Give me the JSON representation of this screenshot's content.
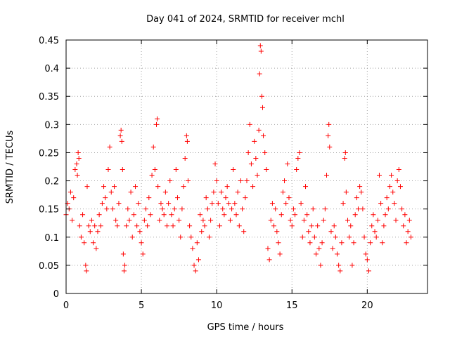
{
  "chart_data": {
    "type": "scatter",
    "title": "Day 041 of 2024, SRMTID for receiver mchl",
    "xlabel": "GPS time / hours",
    "ylabel": "SRMTID / TECUs",
    "xlim": [
      0,
      24
    ],
    "ylim": [
      0,
      0.45
    ],
    "xticks": [
      0,
      5,
      10,
      15,
      20
    ],
    "yticks": [
      0,
      0.05,
      0.1,
      0.15,
      0.2,
      0.25,
      0.3,
      0.35,
      0.4,
      0.45
    ],
    "xtick_labels": [
      "0",
      "5",
      "10",
      "15",
      "20"
    ],
    "ytick_labels": [
      "0",
      "0.05",
      "0.1",
      "0.15",
      "0.2",
      "0.25",
      "0.3",
      "0.35",
      "0.4",
      "0.45"
    ],
    "grid": true,
    "marker": "+",
    "color": "#ff0000",
    "x_range_of_data": [
      0,
      22.9
    ],
    "series": [
      {
        "name": "SRMTID",
        "points": [
          [
            0.0,
            0.14
          ],
          [
            0.1,
            0.16
          ],
          [
            0.2,
            0.15
          ],
          [
            0.3,
            0.18
          ],
          [
            0.4,
            0.13
          ],
          [
            0.5,
            0.17
          ],
          [
            0.6,
            0.22
          ],
          [
            0.7,
            0.23
          ],
          [
            0.75,
            0.21
          ],
          [
            0.8,
            0.25
          ],
          [
            0.85,
            0.24
          ],
          [
            0.9,
            0.12
          ],
          [
            1.0,
            0.1
          ],
          [
            1.1,
            0.14
          ],
          [
            1.2,
            0.09
          ],
          [
            1.3,
            0.05
          ],
          [
            1.35,
            0.04
          ],
          [
            1.4,
            0.19
          ],
          [
            1.5,
            0.12
          ],
          [
            1.6,
            0.11
          ],
          [
            1.7,
            0.13
          ],
          [
            1.8,
            0.09
          ],
          [
            1.9,
            0.12
          ],
          [
            2.0,
            0.08
          ],
          [
            2.1,
            0.11
          ],
          [
            2.2,
            0.14
          ],
          [
            2.3,
            0.12
          ],
          [
            2.4,
            0.16
          ],
          [
            2.5,
            0.19
          ],
          [
            2.6,
            0.17
          ],
          [
            2.7,
            0.15
          ],
          [
            2.8,
            0.22
          ],
          [
            2.9,
            0.26
          ],
          [
            3.0,
            0.18
          ],
          [
            3.1,
            0.15
          ],
          [
            3.2,
            0.19
          ],
          [
            3.3,
            0.13
          ],
          [
            3.4,
            0.12
          ],
          [
            3.5,
            0.16
          ],
          [
            3.6,
            0.28
          ],
          [
            3.65,
            0.29
          ],
          [
            3.7,
            0.27
          ],
          [
            3.75,
            0.22
          ],
          [
            3.8,
            0.07
          ],
          [
            3.85,
            0.04
          ],
          [
            3.9,
            0.05
          ],
          [
            4.0,
            0.12
          ],
          [
            4.1,
            0.15
          ],
          [
            4.2,
            0.13
          ],
          [
            4.3,
            0.18
          ],
          [
            4.4,
            0.1
          ],
          [
            4.5,
            0.14
          ],
          [
            4.6,
            0.19
          ],
          [
            4.7,
            0.12
          ],
          [
            4.8,
            0.16
          ],
          [
            4.9,
            0.11
          ],
          [
            5.0,
            0.09
          ],
          [
            5.1,
            0.07
          ],
          [
            5.2,
            0.13
          ],
          [
            5.3,
            0.15
          ],
          [
            5.4,
            0.12
          ],
          [
            5.5,
            0.17
          ],
          [
            5.6,
            0.14
          ],
          [
            5.7,
            0.21
          ],
          [
            5.8,
            0.26
          ],
          [
            5.9,
            0.22
          ],
          [
            6.0,
            0.3
          ],
          [
            6.05,
            0.31
          ],
          [
            6.1,
            0.19
          ],
          [
            6.2,
            0.13
          ],
          [
            6.3,
            0.16
          ],
          [
            6.4,
            0.15
          ],
          [
            6.5,
            0.14
          ],
          [
            6.6,
            0.18
          ],
          [
            6.7,
            0.12
          ],
          [
            6.8,
            0.16
          ],
          [
            6.9,
            0.2
          ],
          [
            7.0,
            0.14
          ],
          [
            7.1,
            0.12
          ],
          [
            7.2,
            0.15
          ],
          [
            7.3,
            0.22
          ],
          [
            7.4,
            0.17
          ],
          [
            7.5,
            0.13
          ],
          [
            7.6,
            0.1
          ],
          [
            7.7,
            0.15
          ],
          [
            7.8,
            0.19
          ],
          [
            7.9,
            0.24
          ],
          [
            8.0,
            0.28
          ],
          [
            8.05,
            0.27
          ],
          [
            8.1,
            0.2
          ],
          [
            8.2,
            0.12
          ],
          [
            8.3,
            0.1
          ],
          [
            8.4,
            0.08
          ],
          [
            8.5,
            0.05
          ],
          [
            8.6,
            0.04
          ],
          [
            8.7,
            0.09
          ],
          [
            8.8,
            0.06
          ],
          [
            8.9,
            0.14
          ],
          [
            9.0,
            0.11
          ],
          [
            9.1,
            0.13
          ],
          [
            9.2,
            0.12
          ],
          [
            9.3,
            0.17
          ],
          [
            9.4,
            0.15
          ],
          [
            9.5,
            0.1
          ],
          [
            9.6,
            0.13
          ],
          [
            9.7,
            0.16
          ],
          [
            9.8,
            0.18
          ],
          [
            9.9,
            0.23
          ],
          [
            10.0,
            0.2
          ],
          [
            10.1,
            0.16
          ],
          [
            10.2,
            0.12
          ],
          [
            10.3,
            0.18
          ],
          [
            10.4,
            0.15
          ],
          [
            10.5,
            0.14
          ],
          [
            10.6,
            0.17
          ],
          [
            10.7,
            0.19
          ],
          [
            10.8,
            0.16
          ],
          [
            10.9,
            0.13
          ],
          [
            11.0,
            0.15
          ],
          [
            11.1,
            0.22
          ],
          [
            11.2,
            0.16
          ],
          [
            11.3,
            0.14
          ],
          [
            11.4,
            0.18
          ],
          [
            11.5,
            0.12
          ],
          [
            11.6,
            0.2
          ],
          [
            11.7,
            0.15
          ],
          [
            11.8,
            0.11
          ],
          [
            11.9,
            0.17
          ],
          [
            12.0,
            0.2
          ],
          [
            12.1,
            0.25
          ],
          [
            12.2,
            0.3
          ],
          [
            12.3,
            0.23
          ],
          [
            12.4,
            0.19
          ],
          [
            12.5,
            0.27
          ],
          [
            12.6,
            0.24
          ],
          [
            12.7,
            0.21
          ],
          [
            12.8,
            0.29
          ],
          [
            12.85,
            0.39
          ],
          [
            12.9,
            0.44
          ],
          [
            12.95,
            0.43
          ],
          [
            13.0,
            0.35
          ],
          [
            13.05,
            0.33
          ],
          [
            13.1,
            0.28
          ],
          [
            13.2,
            0.25
          ],
          [
            13.3,
            0.22
          ],
          [
            13.4,
            0.08
          ],
          [
            13.5,
            0.06
          ],
          [
            13.6,
            0.13
          ],
          [
            13.7,
            0.16
          ],
          [
            13.8,
            0.12
          ],
          [
            13.9,
            0.15
          ],
          [
            14.0,
            0.11
          ],
          [
            14.1,
            0.09
          ],
          [
            14.2,
            0.07
          ],
          [
            14.3,
            0.14
          ],
          [
            14.4,
            0.18
          ],
          [
            14.5,
            0.2
          ],
          [
            14.6,
            0.16
          ],
          [
            14.7,
            0.23
          ],
          [
            14.8,
            0.17
          ],
          [
            14.9,
            0.13
          ],
          [
            15.0,
            0.12
          ],
          [
            15.1,
            0.15
          ],
          [
            15.2,
            0.14
          ],
          [
            15.3,
            0.22
          ],
          [
            15.4,
            0.24
          ],
          [
            15.5,
            0.25
          ],
          [
            15.6,
            0.16
          ],
          [
            15.7,
            0.1
          ],
          [
            15.8,
            0.13
          ],
          [
            15.9,
            0.19
          ],
          [
            16.0,
            0.14
          ],
          [
            16.1,
            0.11
          ],
          [
            16.2,
            0.09
          ],
          [
            16.3,
            0.12
          ],
          [
            16.4,
            0.15
          ],
          [
            16.5,
            0.1
          ],
          [
            16.6,
            0.07
          ],
          [
            16.7,
            0.12
          ],
          [
            16.8,
            0.08
          ],
          [
            16.9,
            0.05
          ],
          [
            17.0,
            0.09
          ],
          [
            17.1,
            0.13
          ],
          [
            17.2,
            0.15
          ],
          [
            17.3,
            0.21
          ],
          [
            17.4,
            0.28
          ],
          [
            17.45,
            0.3
          ],
          [
            17.5,
            0.26
          ],
          [
            17.6,
            0.11
          ],
          [
            17.7,
            0.08
          ],
          [
            17.8,
            0.12
          ],
          [
            17.9,
            0.1
          ],
          [
            18.0,
            0.07
          ],
          [
            18.1,
            0.05
          ],
          [
            18.2,
            0.04
          ],
          [
            18.3,
            0.09
          ],
          [
            18.4,
            0.16
          ],
          [
            18.5,
            0.24
          ],
          [
            18.55,
            0.25
          ],
          [
            18.6,
            0.18
          ],
          [
            18.7,
            0.13
          ],
          [
            18.8,
            0.1
          ],
          [
            18.9,
            0.12
          ],
          [
            19.0,
            0.05
          ],
          [
            19.1,
            0.09
          ],
          [
            19.2,
            0.14
          ],
          [
            19.3,
            0.17
          ],
          [
            19.4,
            0.15
          ],
          [
            19.5,
            0.19
          ],
          [
            19.6,
            0.18
          ],
          [
            19.7,
            0.15
          ],
          [
            19.8,
            0.1
          ],
          [
            19.9,
            0.07
          ],
          [
            20.0,
            0.06
          ],
          [
            20.1,
            0.04
          ],
          [
            20.2,
            0.09
          ],
          [
            20.3,
            0.12
          ],
          [
            20.4,
            0.14
          ],
          [
            20.5,
            0.11
          ],
          [
            20.6,
            0.1
          ],
          [
            20.7,
            0.13
          ],
          [
            20.8,
            0.21
          ],
          [
            20.9,
            0.16
          ],
          [
            21.0,
            0.09
          ],
          [
            21.1,
            0.12
          ],
          [
            21.2,
            0.14
          ],
          [
            21.3,
            0.17
          ],
          [
            21.4,
            0.15
          ],
          [
            21.5,
            0.19
          ],
          [
            21.6,
            0.21
          ],
          [
            21.7,
            0.18
          ],
          [
            21.8,
            0.16
          ],
          [
            21.9,
            0.13
          ],
          [
            22.0,
            0.2
          ],
          [
            22.1,
            0.22
          ],
          [
            22.2,
            0.19
          ],
          [
            22.3,
            0.15
          ],
          [
            22.4,
            0.12
          ],
          [
            22.5,
            0.14
          ],
          [
            22.6,
            0.09
          ],
          [
            22.7,
            0.11
          ],
          [
            22.8,
            0.13
          ],
          [
            22.9,
            0.1
          ]
        ]
      }
    ]
  }
}
